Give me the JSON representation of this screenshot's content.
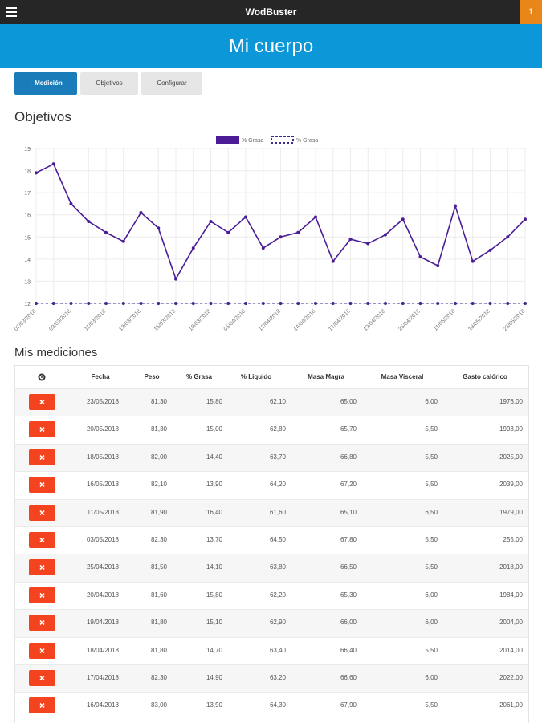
{
  "header": {
    "title": "WodBuster",
    "badge": "1"
  },
  "banner": {
    "title": "Mi cuerpo"
  },
  "buttons": [
    "+ Medición",
    "Objetivos",
    "Configurar"
  ],
  "objectives_heading": "Objetivos",
  "chart_data": {
    "type": "line",
    "categories": [
      "07/03/2018",
      null,
      "09/03/2018",
      null,
      "11/03/2018",
      null,
      "13/03/2018",
      null,
      "15/03/2018",
      null,
      "18/03/2018",
      null,
      "05/04/2018",
      null,
      "12/04/2018",
      null,
      "14/04/2018",
      null,
      "17/04/2018",
      null,
      "19/04/2018",
      null,
      "25/04/2018",
      null,
      "11/05/2018",
      null,
      "18/05/2018",
      null,
      "23/05/2018"
    ],
    "series": [
      {
        "name": "% Grasa",
        "color": "#4a1d96",
        "line_style": "solid",
        "values": [
          17.9,
          18.3,
          16.5,
          15.7,
          15.2,
          14.8,
          16.1,
          15.4,
          13.1,
          14.5,
          15.7,
          15.2,
          15.9,
          14.5,
          15.0,
          15.2,
          15.9,
          13.9,
          14.9,
          14.7,
          15.1,
          15.8,
          14.1,
          13.7,
          16.4,
          13.9,
          14.4,
          15.0,
          15.8
        ]
      },
      {
        "name": "% Grasa",
        "color": "#3b2a8c",
        "line_style": "dashed",
        "values": [
          12,
          12,
          12,
          12,
          12,
          12,
          12,
          12,
          12,
          12,
          12,
          12,
          12,
          12,
          12,
          12,
          12,
          12,
          12,
          12,
          12,
          12,
          12,
          12,
          12,
          12,
          12,
          12,
          12
        ]
      }
    ],
    "ylim": [
      12,
      19
    ],
    "yticks": [
      12,
      13,
      14,
      15,
      16,
      17,
      18,
      19
    ],
    "grid": true
  },
  "measurements": {
    "heading": "Mis mediciones",
    "columns": [
      "Fecha",
      "Peso",
      "% Grasa",
      "% Liquido",
      "Masa Magra",
      "Masa Visceral",
      "Gasto calórico"
    ],
    "rows": [
      [
        "23/05/2018",
        "81,30",
        "15,80",
        "62,10",
        "65,00",
        "6,00",
        "1976,00"
      ],
      [
        "20/05/2018",
        "81,30",
        "15,00",
        "62,80",
        "65,70",
        "5,50",
        "1993,00"
      ],
      [
        "18/05/2018",
        "82,00",
        "14,40",
        "63,70",
        "66,80",
        "5,50",
        "2025,00"
      ],
      [
        "16/05/2018",
        "82,10",
        "13,90",
        "64,20",
        "67,20",
        "5,50",
        "2039,00"
      ],
      [
        "11/05/2018",
        "81,90",
        "16,40",
        "61,60",
        "65,10",
        "6,50",
        "1979,00"
      ],
      [
        "03/05/2018",
        "82,30",
        "13,70",
        "64,50",
        "67,80",
        "5,50",
        "255,00"
      ],
      [
        "25/04/2018",
        "81,50",
        "14,10",
        "63,80",
        "66,50",
        "5,50",
        "2018,00"
      ],
      [
        "20/04/2018",
        "81,60",
        "15,80",
        "62,20",
        "65,30",
        "6,00",
        "1984,00"
      ],
      [
        "19/04/2018",
        "81,80",
        "15,10",
        "62,90",
        "66,00",
        "6,00",
        "2004,00"
      ],
      [
        "18/04/2018",
        "81,80",
        "14,70",
        "63,40",
        "66,40",
        "5,50",
        "2014,00"
      ],
      [
        "17/04/2018",
        "82,30",
        "14,90",
        "63,20",
        "66,60",
        "6,00",
        "2022,00"
      ],
      [
        "16/04/2018",
        "83,00",
        "13,90",
        "64,30",
        "67,90",
        "5,50",
        "2061,00"
      ]
    ]
  }
}
